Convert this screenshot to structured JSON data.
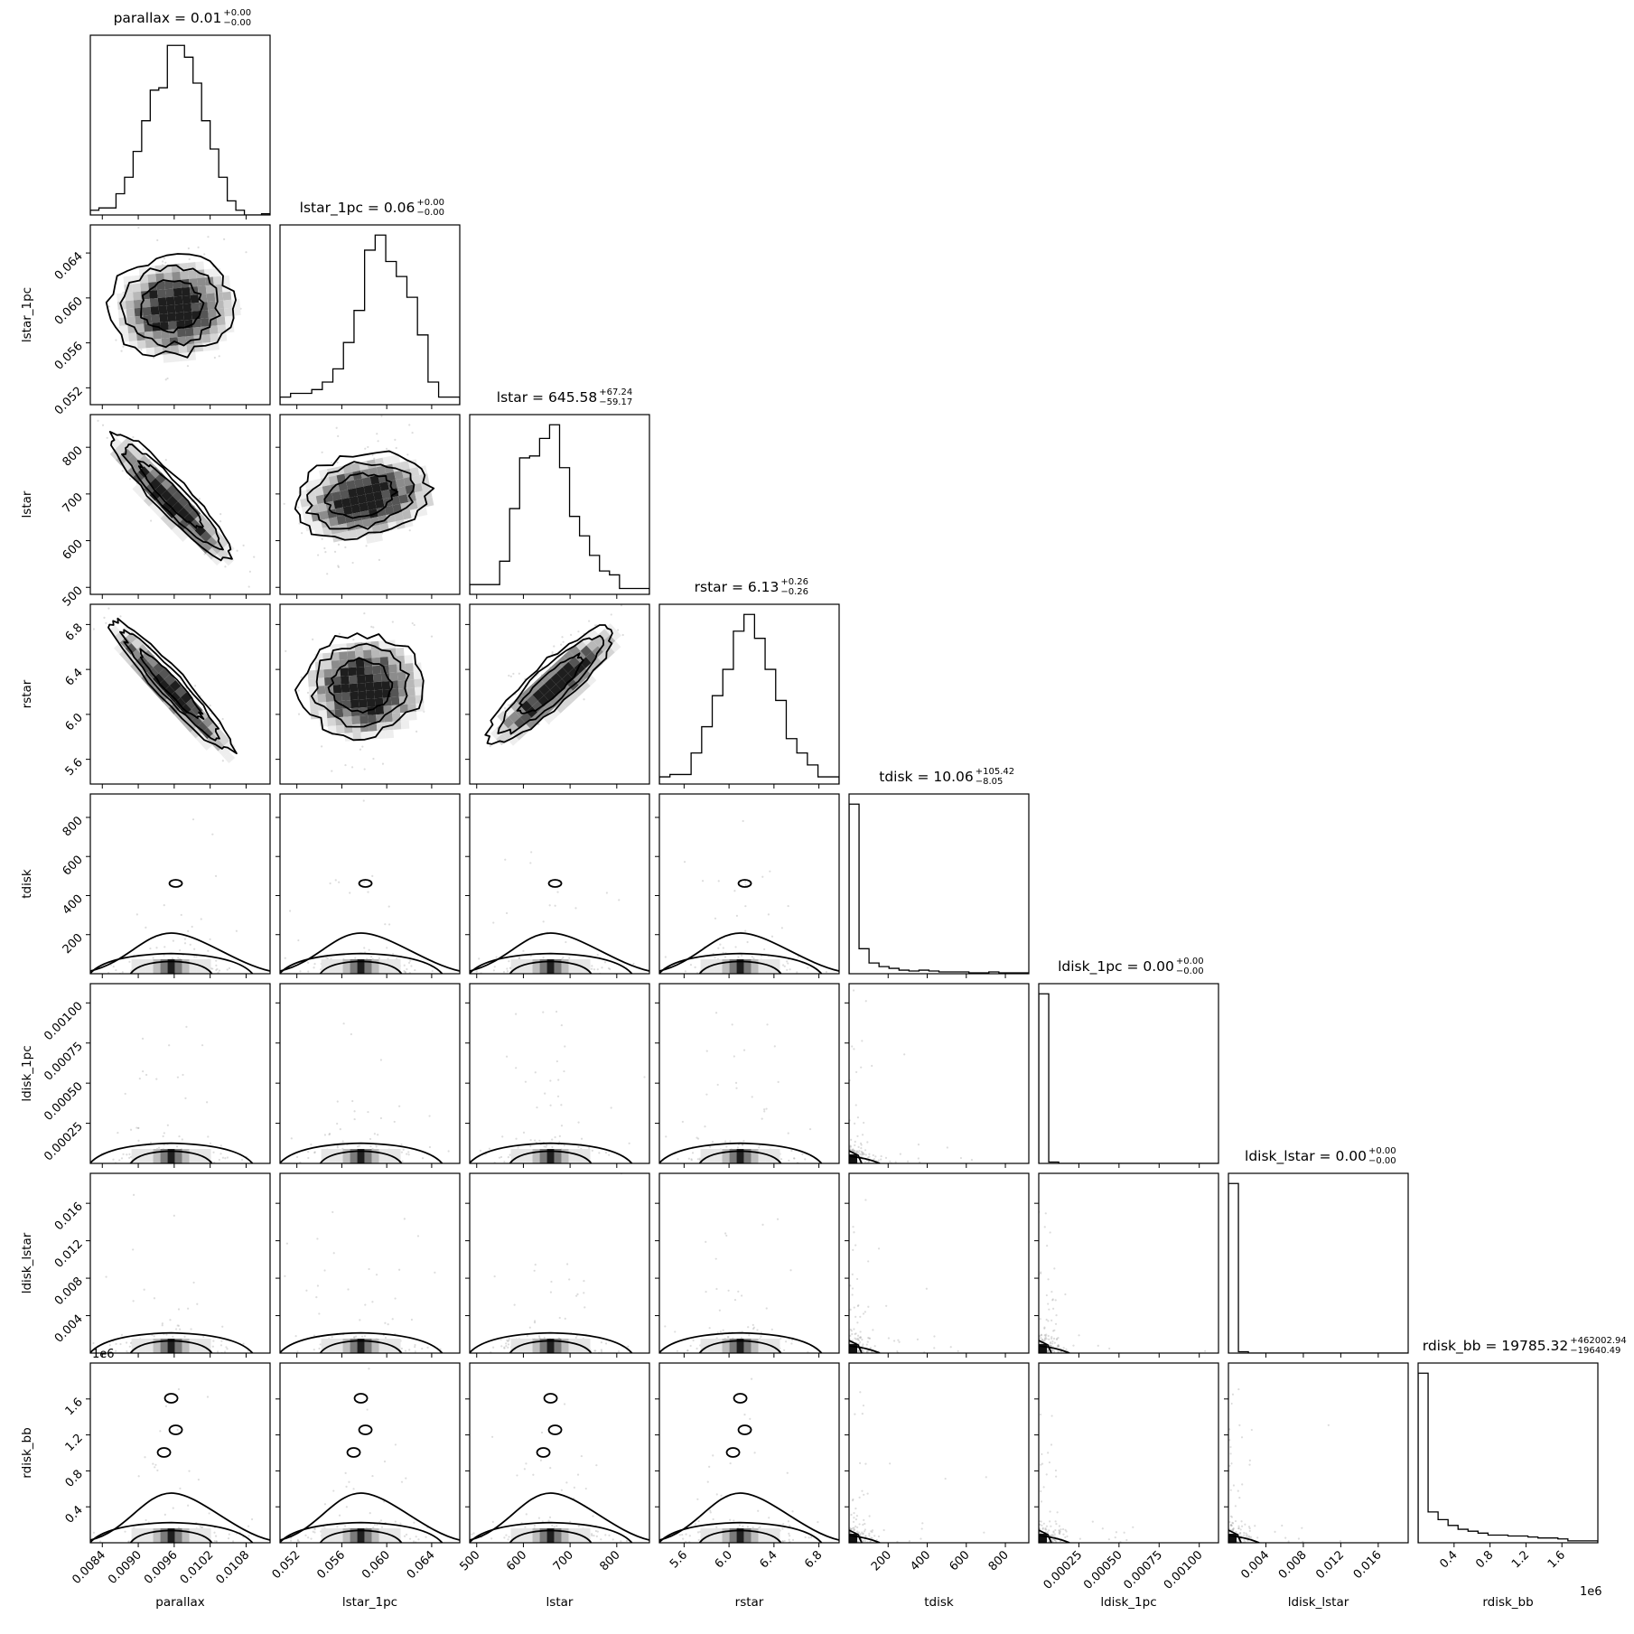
{
  "chart_data": {
    "type": "corner",
    "parameters": [
      "parallax",
      "lstar_1pc",
      "lstar",
      "rstar",
      "tdisk",
      "ldisk_1pc",
      "ldisk_lstar",
      "rdisk_bb"
    ],
    "axis_labels": [
      "parallax",
      "lstar_1pc",
      "lstar",
      "rstar",
      "tdisk",
      "ldisk_1pc",
      "ldisk_lstar",
      "rdisk_bb"
    ],
    "ranges": [
      [
        0.0082,
        0.0112
      ],
      [
        0.0505,
        0.0665
      ],
      [
        485,
        870
      ],
      [
        5.38,
        6.98
      ],
      [
        0,
        920
      ],
      [
        0,
        0.00112
      ],
      [
        0,
        0.0192
      ],
      [
        0,
        2000000
      ]
    ],
    "ticks": [
      [
        0.0084,
        0.009,
        0.0096,
        0.0102,
        0.0108
      ],
      [
        0.052,
        0.056,
        0.06,
        0.064
      ],
      [
        500,
        600,
        700,
        800
      ],
      [
        5.6,
        6.0,
        6.4,
        6.8
      ],
      [
        200,
        400,
        600,
        800
      ],
      [
        0.00025,
        0.0005,
        0.00075,
        0.001
      ],
      [
        0.004,
        0.008,
        0.012,
        0.016
      ],
      [
        400000,
        800000,
        1200000,
        1600000
      ]
    ],
    "tick_labels": [
      [
        "0.0084",
        "0.0090",
        "0.0096",
        "0.0102",
        "0.0108"
      ],
      [
        "0.052",
        "0.056",
        "0.060",
        "0.064"
      ],
      [
        "500",
        "600",
        "700",
        "800"
      ],
      [
        "5.6",
        "6.0",
        "6.4",
        "6.8"
      ],
      [
        "200",
        "400",
        "600",
        "800"
      ],
      [
        "0.00025",
        "0.00050",
        "0.00075",
        "0.00100"
      ],
      [
        "0.004",
        "0.008",
        "0.012",
        "0.016"
      ],
      [
        "0.4",
        "0.8",
        "1.2",
        "1.6"
      ]
    ],
    "offset_texts": [
      "",
      "",
      "",
      "",
      "",
      "",
      "",
      "1e6"
    ],
    "titles": [
      {
        "main": "parallax = 0.01",
        "plus": "+0.00",
        "minus": "−0.00"
      },
      {
        "main": "lstar_1pc = 0.06",
        "plus": "+0.00",
        "minus": "−0.00"
      },
      {
        "main": "lstar = 645.58",
        "plus": "+67.24",
        "minus": "−59.17"
      },
      {
        "main": "rstar = 6.13",
        "plus": "+0.26",
        "minus": "−0.26"
      },
      {
        "main": "tdisk = 10.06",
        "plus": "+105.42",
        "minus": "−8.05"
      },
      {
        "main": "ldisk_1pc = 0.00",
        "plus": "+0.00",
        "minus": "−0.00"
      },
      {
        "main": "ldisk_lstar = 0.00",
        "plus": "+0.00",
        "minus": "−0.00"
      },
      {
        "main": "rdisk_bb = 19785.32",
        "plus": "+462002.94",
        "minus": "−19640.49"
      }
    ],
    "histograms": [
      {
        "counts": [
          2,
          3,
          3,
          9,
          16,
          27,
          40,
          53,
          54,
          72,
          72,
          67,
          56,
          40,
          28,
          16,
          6,
          2,
          0,
          0,
          0.5
        ]
      },
      {
        "counts": [
          4,
          6,
          6,
          8,
          12,
          19,
          33,
          50,
          82,
          90,
          76,
          68,
          57,
          37,
          12,
          4,
          4
        ]
      },
      {
        "counts": [
          5,
          5,
          5,
          17,
          44,
          70,
          71,
          80,
          87,
          65,
          40,
          30,
          20,
          12,
          10,
          3,
          3,
          3
        ]
      },
      {
        "counts": [
          3,
          4,
          4,
          13,
          24,
          37,
          48,
          64,
          71,
          61,
          48,
          35,
          19,
          13,
          8,
          3,
          3
        ]
      },
      {
        "counts": [
          95,
          14,
          6,
          4,
          3,
          2,
          1.5,
          2,
          1.5,
          1,
          1,
          1,
          0.5,
          0.5,
          1,
          0.5,
          0.5,
          0.5
        ]
      },
      {
        "counts": [
          100,
          0.8,
          0,
          0,
          0,
          0,
          0,
          0,
          0,
          0,
          0,
          0,
          0,
          0,
          0,
          0,
          0,
          0
        ]
      },
      {
        "counts": [
          100,
          0.8,
          0,
          0,
          0,
          0,
          0,
          0,
          0,
          0,
          0,
          0,
          0,
          0,
          0,
          0,
          0,
          0
        ]
      },
      {
        "counts": [
          88,
          16,
          12,
          9,
          7,
          6,
          5,
          4,
          4,
          3.5,
          3.5,
          3,
          2.5,
          2.5,
          2,
          1,
          1,
          1
        ]
      }
    ],
    "correlations": {
      "1,0": 0.15,
      "2,0": -0.9,
      "2,1": 0.35,
      "3,0": -0.95,
      "3,1": 0.12,
      "3,2": 0.8
    }
  }
}
